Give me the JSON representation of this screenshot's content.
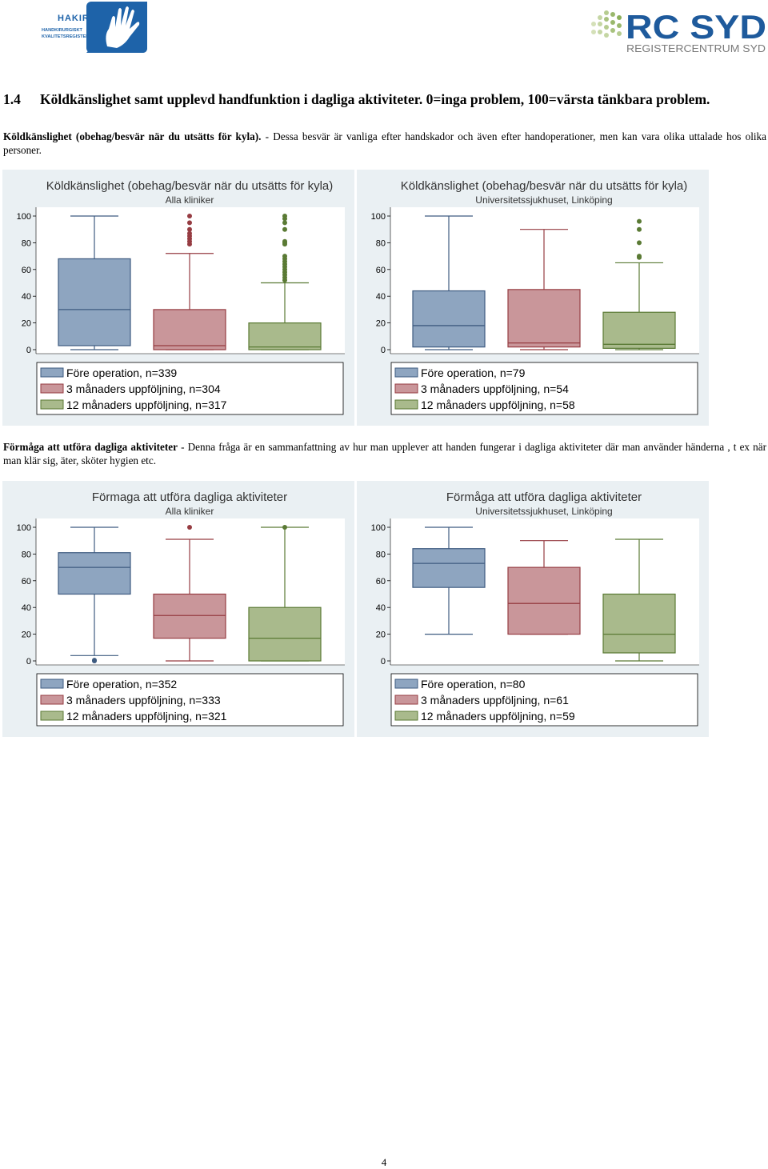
{
  "logos": {
    "hakir": {
      "title": "HAKIR",
      "line1": "HANDKIRURGISKT",
      "line2": "KVALITETSREGISTER"
    },
    "rcsyd": {
      "title": "RC SYD",
      "subtitle": "REGISTERCENTRUM SYD"
    }
  },
  "section": {
    "number": "1.4",
    "title": "Köldkänslighet samt upplevd handfunktion i dagliga aktiviteter. 0=inga problem, 100=värsta tänkbara problem."
  },
  "para1": {
    "bold": "Köldkänslighet (obehag/besvär när du utsätts för kyla).",
    "text": " - Dessa besvär är vanliga efter handskador och även efter handoperationer, men kan vara olika uttalade hos olika personer."
  },
  "para2": {
    "bold": "Förmåga att utföra dagliga aktiviteter",
    "text": " - Denna fråga är en sammanfattning av hur man upplever att handen fungerar i dagliga aktiviteter där man använder händerna , t ex när man klär sig, äter, sköter hygien etc."
  },
  "colors": {
    "series1": "#8ea5c0",
    "series1_line": "#3e5b80",
    "series2": "#c9969a",
    "series2_line": "#963c42",
    "series3": "#a9ba8c",
    "series3_line": "#5a7a34",
    "panel_bg": "#eaf0f3"
  },
  "chart_data": [
    {
      "type": "box",
      "title": "Köldkänslighet (obehag/besvär när du utsätts för kyla)",
      "subtitle": "Alla kliniker",
      "ylim": [
        0,
        100
      ],
      "yticks": [
        "0",
        "20",
        "40",
        "60",
        "80",
        "100"
      ],
      "legend": "bottom",
      "series": [
        {
          "name": "Före operation, n=339",
          "whisker_low": 0,
          "q1": 3,
          "median": 30,
          "q3": 68,
          "whisker_high": 100,
          "outliers": []
        },
        {
          "name": "3 månaders uppföljning, n=304",
          "whisker_low": 0,
          "q1": 0,
          "median": 3,
          "q3": 30,
          "whisker_high": 72,
          "outliers": [
            79,
            81,
            83,
            85,
            87,
            90,
            95,
            100
          ]
        },
        {
          "name": "12 månaders uppföljning, n=317",
          "whisker_low": 0,
          "q1": 0,
          "median": 2,
          "q3": 20,
          "whisker_high": 50,
          "outliers": [
            52,
            54,
            56,
            58,
            60,
            62,
            64,
            66,
            68,
            70,
            79,
            80,
            81,
            90,
            95,
            98,
            100
          ]
        }
      ]
    },
    {
      "type": "box",
      "title": "Köldkänslighet (obehag/besvär när du utsätts för kyla)",
      "subtitle": "Universitetssjukhuset, Linköping",
      "ylim": [
        0,
        100
      ],
      "yticks": [
        "0",
        "20",
        "40",
        "60",
        "80",
        "100"
      ],
      "legend": "bottom",
      "series": [
        {
          "name": "Före operation, n=79",
          "whisker_low": 0,
          "q1": 2,
          "median": 18,
          "q3": 44,
          "whisker_high": 100,
          "outliers": []
        },
        {
          "name": "3 månaders uppföljning, n=54",
          "whisker_low": 0,
          "q1": 2,
          "median": 5,
          "q3": 45,
          "whisker_high": 90,
          "outliers": []
        },
        {
          "name": "12 månaders uppföljning, n=58",
          "whisker_low": 0,
          "q1": 1,
          "median": 4,
          "q3": 28,
          "whisker_high": 65,
          "outliers": [
            69,
            70,
            80,
            90,
            96
          ]
        }
      ]
    },
    {
      "type": "box",
      "title": "Förmaga att utföra dagliga aktiviteter",
      "subtitle": "Alla kliniker",
      "ylim": [
        0,
        100
      ],
      "yticks": [
        "0",
        "20",
        "40",
        "60",
        "80",
        "100"
      ],
      "legend": "bottom",
      "series": [
        {
          "name": "Före operation, n=352",
          "whisker_low": 4,
          "q1": 50,
          "median": 70,
          "q3": 81,
          "whisker_high": 100,
          "outliers": [
            0,
            0.5
          ]
        },
        {
          "name": "3 månaders uppföljning, n=333",
          "whisker_low": 0,
          "q1": 17,
          "median": 34,
          "q3": 50,
          "whisker_high": 91,
          "outliers": [
            100
          ]
        },
        {
          "name": "12 månaders uppföljning, n=321",
          "whisker_low": 0,
          "q1": 0,
          "median": 17,
          "q3": 40,
          "whisker_high": 100,
          "outliers": [
            100
          ]
        }
      ]
    },
    {
      "type": "box",
      "title": "Förmåga att utföra dagliga aktiviteter",
      "subtitle": "Universitetssjukhuset, Linköping",
      "ylim": [
        0,
        100
      ],
      "yticks": [
        "0",
        "20",
        "40",
        "60",
        "80",
        "100"
      ],
      "legend": "bottom",
      "series": [
        {
          "name": "Före operation, n=80",
          "whisker_low": 20,
          "q1": 55,
          "median": 73,
          "q3": 84,
          "whisker_high": 100,
          "outliers": []
        },
        {
          "name": "3 månaders uppföljning, n=61",
          "whisker_low": 20,
          "q1": 20,
          "median": 43,
          "q3": 70,
          "whisker_high": 90,
          "outliers": []
        },
        {
          "name": "12 månaders uppföljning, n=59",
          "whisker_low": 0,
          "q1": 6,
          "median": 20,
          "q3": 50,
          "whisker_high": 91,
          "outliers": []
        }
      ]
    }
  ],
  "page_number": "4"
}
